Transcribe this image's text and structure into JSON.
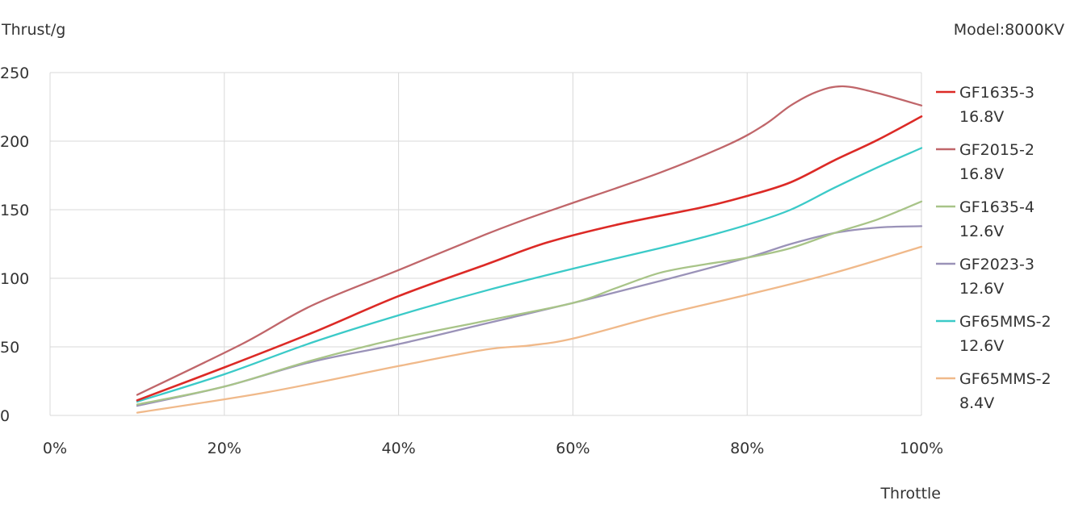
{
  "chart_data": {
    "type": "line",
    "title": "",
    "model_label": "Model:8000KV",
    "xlabel": "Throttle",
    "ylabel": "Thrust/g",
    "xlim": [
      0,
      100
    ],
    "ylim": [
      0,
      250
    ],
    "x_ticks": [
      "0%",
      "20%",
      "40%",
      "60%",
      "80%",
      "100%"
    ],
    "x_tick_values": [
      0,
      20,
      40,
      60,
      80,
      100
    ],
    "y_ticks": [
      "0",
      "50",
      "100",
      "150",
      "200",
      "250"
    ],
    "y_tick_values": [
      0,
      50,
      100,
      150,
      200,
      250
    ],
    "grid": true,
    "legend_position": "right",
    "series": [
      {
        "name": "GF1635-3",
        "voltage": "16.8V",
        "color": "#dc2a26",
        "points": [
          [
            10,
            11
          ],
          [
            20,
            35
          ],
          [
            30,
            60
          ],
          [
            40,
            87
          ],
          [
            50,
            110
          ],
          [
            57,
            126
          ],
          [
            65,
            139
          ],
          [
            75,
            152
          ],
          [
            80,
            160
          ],
          [
            85,
            170
          ],
          [
            90,
            186
          ],
          [
            95,
            201
          ],
          [
            100,
            218
          ]
        ]
      },
      {
        "name": "GF2015-2",
        "voltage": "16.8V",
        "color": "#c0666a",
        "points": [
          [
            10,
            15
          ],
          [
            22,
            52
          ],
          [
            30,
            80
          ],
          [
            40,
            106
          ],
          [
            50,
            132
          ],
          [
            55,
            144
          ],
          [
            60,
            155
          ],
          [
            70,
            177
          ],
          [
            78,
            198
          ],
          [
            82,
            212
          ],
          [
            85,
            226
          ],
          [
            88,
            236
          ],
          [
            91,
            240
          ],
          [
            95,
            235
          ],
          [
            100,
            226
          ]
        ]
      },
      {
        "name": "GF1635-4",
        "voltage": "12.6V",
        "color": "#a8c488",
        "points": [
          [
            10,
            8
          ],
          [
            20,
            21
          ],
          [
            30,
            40
          ],
          [
            40,
            56
          ],
          [
            50,
            69
          ],
          [
            60,
            82
          ],
          [
            65,
            93
          ],
          [
            70,
            104
          ],
          [
            75,
            110
          ],
          [
            80,
            115
          ],
          [
            85,
            122
          ],
          [
            90,
            133
          ],
          [
            95,
            143
          ],
          [
            100,
            156
          ]
        ]
      },
      {
        "name": "GF2023-3",
        "voltage": "12.6V",
        "color": "#9a92b8",
        "points": [
          [
            10,
            7
          ],
          [
            20,
            21
          ],
          [
            30,
            39
          ],
          [
            40,
            52
          ],
          [
            50,
            67
          ],
          [
            60,
            82
          ],
          [
            70,
            98
          ],
          [
            80,
            115
          ],
          [
            85,
            125
          ],
          [
            90,
            133
          ],
          [
            95,
            137
          ],
          [
            100,
            138
          ]
        ]
      },
      {
        "name": "GF65MMS-2",
        "voltage": "12.6V",
        "color": "#3bcac8",
        "points": [
          [
            10,
            10
          ],
          [
            20,
            30
          ],
          [
            30,
            53
          ],
          [
            40,
            73
          ],
          [
            50,
            91
          ],
          [
            60,
            107
          ],
          [
            70,
            122
          ],
          [
            75,
            130
          ],
          [
            80,
            139
          ],
          [
            85,
            150
          ],
          [
            90,
            166
          ],
          [
            95,
            181
          ],
          [
            100,
            195
          ]
        ]
      },
      {
        "name": "GF65MMS-2",
        "voltage": "8.4V",
        "color": "#f0b98a",
        "points": [
          [
            10,
            2
          ],
          [
            25,
            17
          ],
          [
            40,
            36
          ],
          [
            50,
            48
          ],
          [
            55,
            51
          ],
          [
            60,
            56
          ],
          [
            70,
            73
          ],
          [
            80,
            88
          ],
          [
            90,
            104
          ],
          [
            100,
            123
          ]
        ]
      }
    ]
  }
}
